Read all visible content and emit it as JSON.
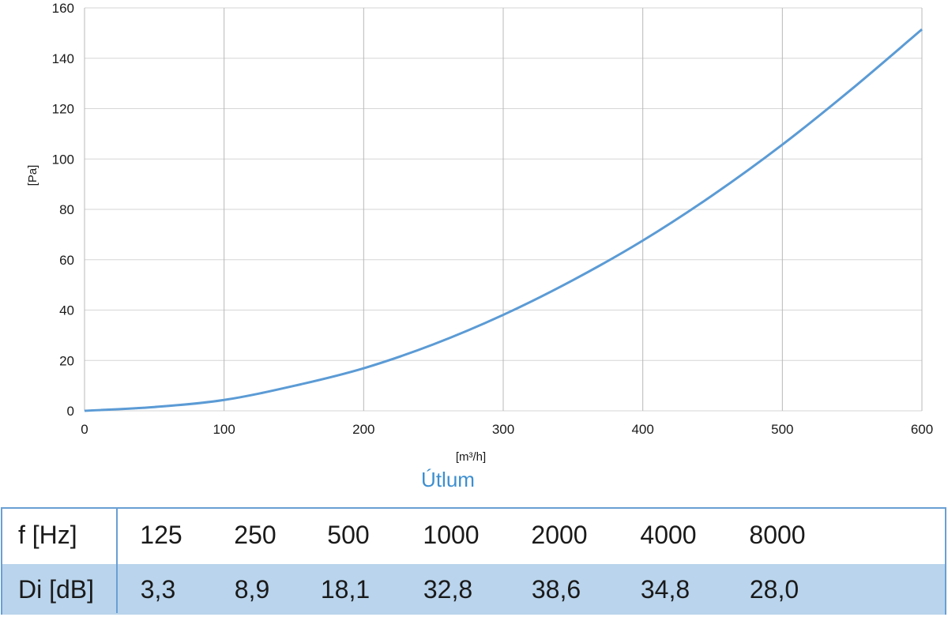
{
  "chart_data": {
    "type": "line",
    "title": "",
    "xlabel": "[m³/h]",
    "ylabel": "[Pa]",
    "xlim": [
      0,
      600
    ],
    "ylim": [
      0,
      160
    ],
    "x_ticks": [
      0,
      100,
      200,
      300,
      400,
      500,
      600
    ],
    "y_ticks": [
      0,
      20,
      40,
      60,
      80,
      100,
      120,
      140,
      160
    ],
    "grid": "vertical and horizontal",
    "legend": "none",
    "series": [
      {
        "color": "#5b9bd5",
        "x": [
          0,
          50,
          100,
          150,
          200,
          250,
          300,
          350,
          400,
          450,
          500,
          550,
          600
        ],
        "y": [
          0,
          1.5,
          4.3,
          9.9,
          16.9,
          26.4,
          38.1,
          51.9,
          67.6,
          85.6,
          105.7,
          127.9,
          151.5
        ]
      }
    ]
  },
  "attenuation": {
    "title": "Útlum",
    "title_color": "#3d8fd0",
    "row1_label": "f [Hz]",
    "row2_label": "Di [dB]",
    "frequencies": [
      "125",
      "250",
      "500",
      "1000",
      "2000",
      "4000",
      "8000"
    ],
    "values": [
      "3,3",
      "8,9",
      "18,1",
      "32,8",
      "38,6",
      "34,8",
      "28,0"
    ],
    "row2_bg": "#b9d4ec",
    "border_color": "#6a9fd4"
  }
}
